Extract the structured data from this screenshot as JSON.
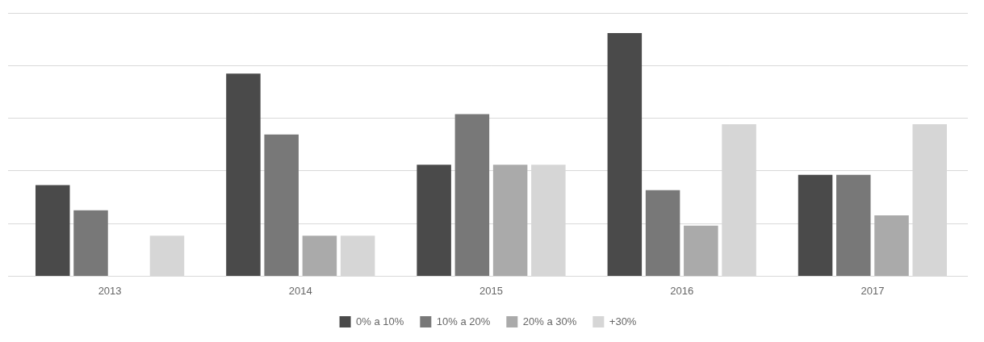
{
  "chart_data": {
    "type": "bar",
    "categories": [
      "2013",
      "2014",
      "2015",
      "2016",
      "2017"
    ],
    "series": [
      {
        "name": "0% a 10%",
        "color": "#4a4a4a",
        "values": [
          18,
          40,
          22,
          48,
          20
        ]
      },
      {
        "name": "10% a 20%",
        "color": "#787878",
        "values": [
          13,
          28,
          32,
          17,
          20
        ]
      },
      {
        "name": "20% a 30%",
        "color": "#aaaaaa",
        "values": [
          0,
          8,
          22,
          10,
          12
        ]
      },
      {
        "name": "+30%",
        "color": "#d6d6d6",
        "values": [
          8,
          8,
          22,
          30,
          30
        ]
      }
    ],
    "ylim": [
      0,
      52
    ],
    "yticks": [
      0,
      10.4,
      20.8,
      31.2,
      41.6,
      52
    ],
    "grid": true,
    "legend": "bottom",
    "tick_labels": "x"
  }
}
